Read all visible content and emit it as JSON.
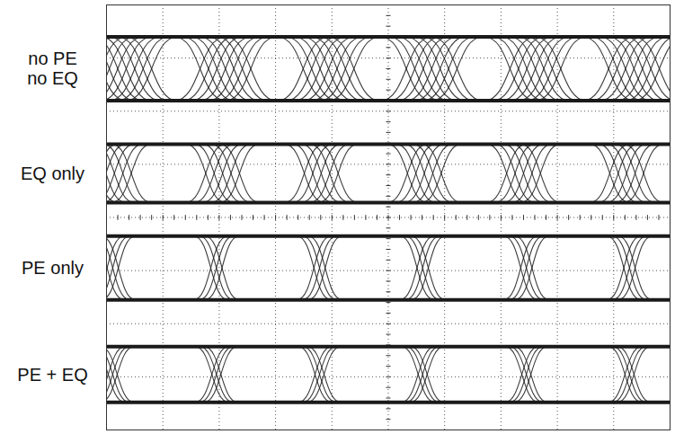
{
  "chart_data": {
    "type": "eye",
    "xlim": [
      0,
      10
    ],
    "ylim": [
      0,
      8
    ],
    "xticks": [
      0,
      1,
      2,
      3,
      4,
      5,
      6,
      7,
      8,
      9,
      10
    ],
    "yticks": [
      0,
      1,
      2,
      3,
      4,
      5,
      6,
      7,
      8
    ],
    "grid": true,
    "tick_labels": false,
    "color": "#1a1a1a",
    "series": [
      {
        "name": "no PE\nno EQ",
        "levels": [
          6.2,
          7.4
        ],
        "crossings": [
          0.35,
          2.11,
          3.94,
          5.77,
          7.61,
          9.36
        ],
        "jitter": [
          -0.45,
          -0.3,
          -0.15,
          0,
          0.15,
          0.3,
          0.45
        ],
        "edge": 0.9
      },
      {
        "name": "EQ only",
        "levels": [
          4.28,
          5.38
        ],
        "crossings": [
          0.19,
          2.11,
          3.86,
          5.69,
          7.45,
          9.28
        ],
        "jitter": [
          -0.35,
          -0.2,
          -0.05,
          0.1,
          0.25
        ],
        "edge": 0.7
      },
      {
        "name": "PE only",
        "levels": [
          2.45,
          3.65
        ],
        "crossings": [
          0.11,
          1.95,
          3.78,
          5.61,
          7.45,
          9.28
        ],
        "jitter": [
          -0.1,
          0,
          0.1
        ],
        "edge": 0.6
      },
      {
        "name": "PE + EQ",
        "levels": [
          0.52,
          1.57
        ],
        "crossings": [
          0.11,
          1.95,
          3.78,
          5.61,
          7.45,
          9.28
        ],
        "jitter": [
          -0.08,
          0,
          0.08
        ],
        "edge": 0.6
      }
    ]
  }
}
